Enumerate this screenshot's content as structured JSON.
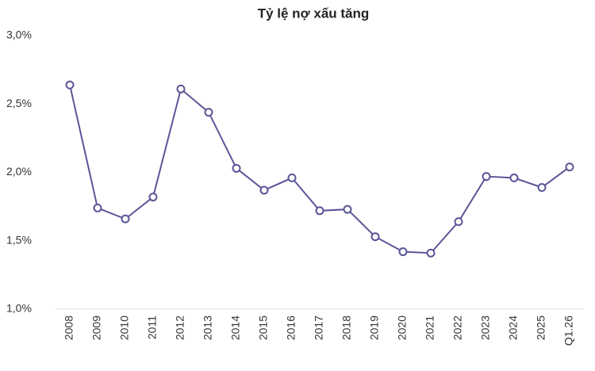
{
  "chart_data": {
    "type": "line",
    "title": "Tỷ lệ nợ xấu tăng",
    "categories": [
      "2008",
      "2009",
      "2010",
      "2011",
      "2012",
      "2013",
      "2014",
      "2015",
      "2016",
      "2017",
      "2018",
      "2019",
      "2020",
      "2021",
      "2022",
      "2023",
      "2024",
      "2025",
      "Q1.26"
    ],
    "series": [
      {
        "name": "Tỷ lệ nợ xấu",
        "color": "#5b5698",
        "values": [
          2.64,
          1.74,
          1.66,
          1.82,
          2.61,
          2.44,
          2.03,
          1.87,
          1.96,
          1.72,
          1.73,
          1.53,
          1.42,
          1.41,
          1.64,
          1.97,
          1.96,
          1.89,
          2.04
        ]
      }
    ],
    "ylim": [
      1.0,
      3.0
    ],
    "yticks": [
      {
        "value": 1.0,
        "label": "1,0%"
      },
      {
        "value": 1.5,
        "label": "1,5%"
      },
      {
        "value": 2.0,
        "label": "2,0%"
      },
      {
        "value": 2.5,
        "label": "2,5%"
      },
      {
        "value": 3.0,
        "label": "3,0%"
      }
    ],
    "grid": false
  }
}
